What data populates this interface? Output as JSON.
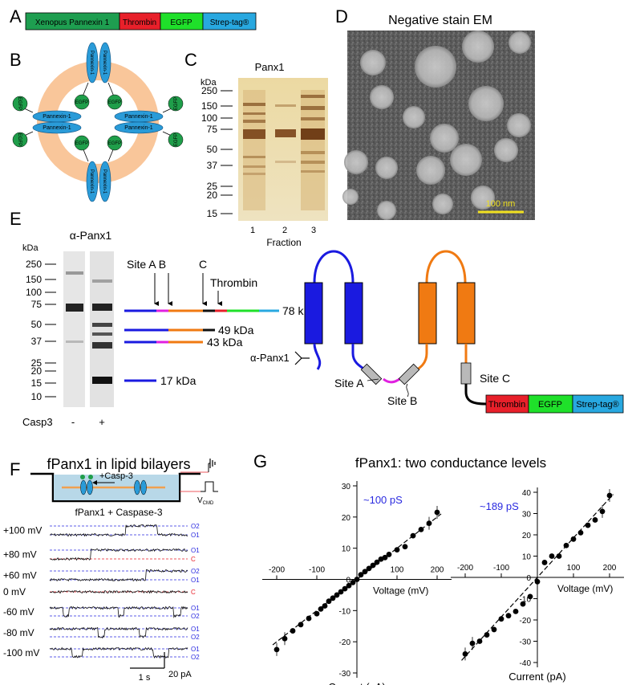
{
  "panel_labels": [
    "A",
    "B",
    "C",
    "D",
    "E",
    "F",
    "G"
  ],
  "construct": {
    "segments": [
      {
        "label": "Xenopus  Pannexin 1",
        "color": "#1e9e50"
      },
      {
        "label": "Thrombin",
        "color": "#e8202a"
      },
      {
        "label": "EGFP",
        "color": "#1fe02a"
      },
      {
        "label": "Strep-tag®",
        "color": "#28a8e0"
      }
    ]
  },
  "topology_b": {
    "subunit_label": "Pannexin-1",
    "tag_label": "EGFP",
    "colors": {
      "ring": "#f9c69a",
      "subunit": "#2a9bd8",
      "gfp": "#1f9e4a"
    }
  },
  "gel_c": {
    "title": "Panx1",
    "unit": "kDa",
    "markers": [
      "250",
      "150",
      "100",
      "75",
      "50",
      "37",
      "25",
      "20",
      "15"
    ],
    "lanes": [
      "1",
      "2",
      "3"
    ],
    "xlabel": "Fraction"
  },
  "em_d": {
    "title": "Negative stain EM",
    "scalebar": "100 nm"
  },
  "blot_e": {
    "title": "α-Panx1",
    "unit": "kDa",
    "markers": [
      "250",
      "150",
      "100",
      "75",
      "50",
      "37",
      "25",
      "20",
      "15",
      "10"
    ],
    "site_labels": {
      "ab": "Site A B",
      "c": "C",
      "thrombin": "Thrombin"
    },
    "fragments": [
      {
        "label": "78 kDa",
        "color": "#1fe02a"
      },
      {
        "label": "49 kDa",
        "color": "#111111"
      },
      {
        "label": "43 kDa",
        "color": "#f07a12"
      },
      {
        "label": "17 kDa",
        "color": "#1a1ae0"
      }
    ],
    "row_label": "Casp3",
    "lanes": [
      "-",
      "+"
    ]
  },
  "topology_e": {
    "antibody": "α-Panx1",
    "sites": [
      "Site A",
      "Site B",
      "Site C"
    ],
    "tags": [
      {
        "label": "Thrombin",
        "color": "#e8202a"
      },
      {
        "label": "EGFP",
        "color": "#1fe02a"
      },
      {
        "label": "Strep-tag®",
        "color": "#28a8e0"
      }
    ],
    "colors": {
      "blue": "#1a1ae0",
      "orange": "#f07a12",
      "magenta": "#e020e0"
    }
  },
  "bilayer_f": {
    "title": "fPanx1 in lipid bilayers",
    "drug": "+Casp-3",
    "vcmd": "V",
    "vcmd_sub": "CMD",
    "subtitle": "fPanx1 + Caspase-3",
    "traces": [
      {
        "voltage": "+100 mV",
        "levels": [
          "O2",
          "O1"
        ]
      },
      {
        "voltage": "+80 mV",
        "levels": [
          "O1",
          "C"
        ]
      },
      {
        "voltage": "+60 mV",
        "levels": [
          "O2",
          "O1"
        ]
      },
      {
        "voltage": "0 mV",
        "levels": [
          "C"
        ]
      },
      {
        "voltage": "-60 mV",
        "levels": [
          "O1",
          "O2"
        ]
      },
      {
        "voltage": "-80 mV",
        "levels": [
          "O1",
          "O2"
        ]
      },
      {
        "voltage": "-100 mV",
        "levels": [
          "O1",
          "O2"
        ]
      }
    ],
    "scale_time": "1 s",
    "scale_current": "20 pA"
  },
  "chart_data": [
    {
      "type": "scatter",
      "title": "fPanx1: two conductance levels",
      "annotation": "~100 pS",
      "xlabel": "Voltage (mV)",
      "ylabel": "Current (pA)",
      "xlim": [
        -200,
        200
      ],
      "ylim": [
        -30,
        30
      ],
      "xticks": [
        -200,
        -100,
        0,
        100,
        200
      ],
      "yticks": [
        -30,
        -20,
        -10,
        0,
        10,
        20,
        30
      ],
      "x": [
        -200,
        -180,
        -160,
        -140,
        -120,
        -100,
        -90,
        -80,
        -70,
        -60,
        -50,
        -40,
        -30,
        -20,
        -10,
        0,
        10,
        20,
        30,
        40,
        50,
        60,
        70,
        80,
        100,
        120,
        140,
        160,
        180,
        200
      ],
      "y": [
        -22.5,
        -19,
        -16.5,
        -14.5,
        -12.5,
        -11,
        -9.5,
        -8.5,
        -7,
        -6,
        -5,
        -4,
        -3,
        -2,
        -1,
        0,
        1.5,
        2.5,
        3.5,
        4.5,
        5.5,
        6.5,
        7,
        8,
        9.5,
        10.5,
        14,
        16,
        18,
        21.5
      ],
      "fit": {
        "x": [
          -210,
          210
        ],
        "y": [
          -21,
          21
        ]
      }
    },
    {
      "type": "scatter",
      "annotation": "~189 pS",
      "xlabel": "Voltage (mV)",
      "ylabel": "Current (pA)",
      "xlim": [
        -200,
        200
      ],
      "ylim": [
        -40,
        40
      ],
      "xticks": [
        -200,
        -100,
        0,
        100,
        200
      ],
      "yticks": [
        -40,
        -30,
        -20,
        -10,
        0,
        10,
        20,
        30,
        40
      ],
      "x": [
        -200,
        -180,
        -160,
        -140,
        -120,
        -100,
        -80,
        -60,
        -40,
        -20,
        0,
        20,
        40,
        60,
        80,
        100,
        120,
        140,
        160,
        180,
        200
      ],
      "y": [
        -36,
        -31,
        -30,
        -27,
        -24.5,
        -19.5,
        -18,
        -16,
        -12.5,
        -9,
        -2,
        7,
        10,
        10,
        15,
        18,
        21,
        24.5,
        27,
        31,
        38.5
      ],
      "fit": {
        "x": [
          -210,
          210
        ],
        "y": [
          -39,
          39
        ]
      }
    }
  ]
}
